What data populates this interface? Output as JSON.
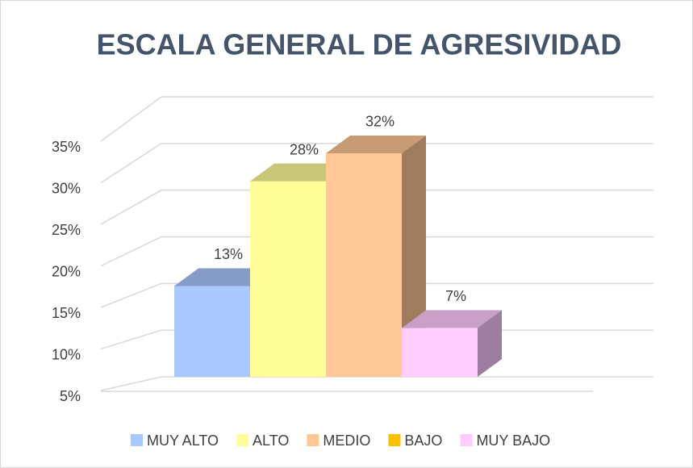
{
  "chart_data": {
    "type": "bar3d",
    "title": "ESCALA GENERAL DE AGRESIVIDAD",
    "categories": [
      "MUY ALTO",
      "ALTO",
      "MEDIO",
      "BAJO",
      "MUY BAJO"
    ],
    "values": [
      13,
      28,
      32,
      null,
      7
    ],
    "value_labels": [
      "13%",
      "28%",
      "32%",
      null,
      "7%"
    ],
    "colors": [
      "#a9c8ff",
      "#ffff99",
      "#ffc896",
      "#ffc000",
      "#ffccff"
    ],
    "ylim": [
      5,
      35
    ],
    "yticks": [
      {
        "value": 5,
        "label": "5%"
      },
      {
        "value": 10,
        "label": "10%"
      },
      {
        "value": 15,
        "label": "15%"
      },
      {
        "value": 20,
        "label": "20%"
      },
      {
        "value": 25,
        "label": "25%"
      },
      {
        "value": 30,
        "label": "30%"
      },
      {
        "value": 35,
        "label": "35%"
      }
    ],
    "grid": true,
    "legend": "bottom"
  }
}
